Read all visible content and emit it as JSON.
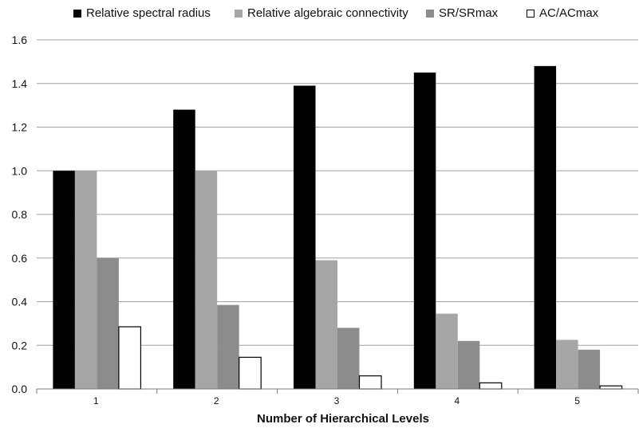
{
  "chart_data": {
    "type": "bar",
    "title": "",
    "xlabel": "Number of Hierarchical Levels",
    "ylabel": "",
    "categories": [
      "1",
      "2",
      "3",
      "4",
      "5"
    ],
    "ylim": [
      0,
      1.6
    ],
    "yticks": [
      "0.0",
      "0.2",
      "0.4",
      "0.6",
      "0.8",
      "1.0",
      "1.2",
      "1.4",
      "1.6"
    ],
    "grid": true,
    "legend_position": "top",
    "series": [
      {
        "name": "Relative spectral radius",
        "color": "#000000",
        "values": [
          1.0,
          1.28,
          1.39,
          1.45,
          1.48
        ]
      },
      {
        "name": "Relative algebraic connectivity",
        "color": "#a6a6a6",
        "values": [
          1.0,
          1.0,
          0.59,
          0.345,
          0.225
        ]
      },
      {
        "name": "SR/SRmax",
        "color": "#8c8c8c",
        "values": [
          0.6,
          0.385,
          0.28,
          0.22,
          0.18
        ]
      },
      {
        "name": "AC/ACmax",
        "color": "#ffffff",
        "values": [
          0.285,
          0.145,
          0.06,
          0.028,
          0.014
        ]
      }
    ]
  }
}
